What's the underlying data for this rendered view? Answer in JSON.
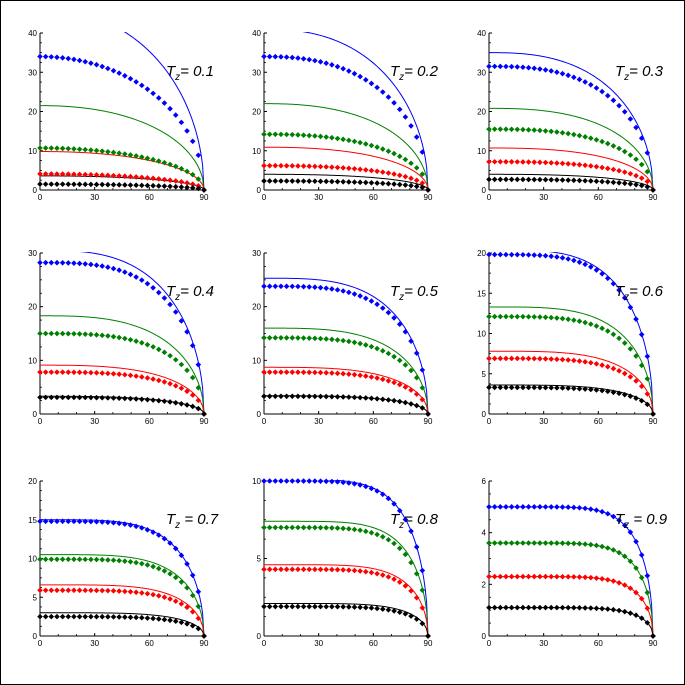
{
  "chart_data": [
    {
      "type": "line",
      "title": "Tz= 0.1",
      "title_parts": {
        "main": "T",
        "sub": "z",
        "rest": "= 0.1"
      },
      "xlim": [
        0,
        90
      ],
      "ylim": [
        0,
        40
      ],
      "xticks": [
        0,
        30,
        60,
        90
      ],
      "yticks": [
        0,
        10,
        20,
        30,
        40
      ],
      "line_max": [
        46,
        21.5,
        9.8,
        3.6
      ],
      "dot_max": [
        34,
        10.7,
        4.1,
        1.5
      ],
      "line_shape": 2.2,
      "dot_shape": 2.0
    },
    {
      "type": "line",
      "title": "Tz= 0.2",
      "title_parts": {
        "main": "T",
        "sub": "z",
        "rest": "= 0.2"
      },
      "xlim": [
        0,
        90
      ],
      "ylim": [
        0,
        40
      ],
      "xticks": [
        0,
        30,
        60,
        90
      ],
      "yticks": [
        0,
        10,
        20,
        30,
        40
      ],
      "line_max": [
        41,
        22,
        10.9,
        4
      ],
      "dot_max": [
        34,
        14.2,
        6.2,
        2.3
      ],
      "line_shape": 2.4,
      "dot_shape": 2.4
    },
    {
      "type": "line",
      "title": "Tz= 0.3",
      "title_parts": {
        "main": "T",
        "sub": "z",
        "rest": "= 0.3"
      },
      "xlim": [
        0,
        90
      ],
      "ylim": [
        0,
        40
      ],
      "xticks": [
        0,
        30,
        60,
        90
      ],
      "yticks": [
        0,
        10,
        20,
        30,
        40
      ],
      "line_max": [
        35,
        20.8,
        10.7,
        4
      ],
      "dot_max": [
        31.5,
        15.5,
        7.2,
        2.7
      ],
      "line_shape": 2.6,
      "dot_shape": 2.7
    },
    {
      "type": "line",
      "title": "Tz= 0.4",
      "title_parts": {
        "main": "T",
        "sub": "z",
        "rest": "= 0.4"
      },
      "xlim": [
        0,
        90
      ],
      "ylim": [
        0,
        30
      ],
      "xticks": [
        0,
        30,
        60,
        90
      ],
      "yticks": [
        0,
        10,
        20,
        30
      ],
      "line_max": [
        30.5,
        18.3,
        9.1,
        3.3
      ],
      "dot_max": [
        28.2,
        15,
        7.8,
        3.1
      ],
      "line_shape": 3.0,
      "dot_shape": 3.2
    },
    {
      "type": "line",
      "title": "Tz= 0.5",
      "title_parts": {
        "main": "T",
        "sub": "z",
        "rest": "= 0.5"
      },
      "xlim": [
        0,
        90
      ],
      "ylim": [
        0,
        30
      ],
      "xticks": [
        0,
        30,
        60,
        90
      ],
      "yticks": [
        0,
        10,
        20,
        30
      ],
      "line_max": [
        25.3,
        16,
        8.7,
        3.4
      ],
      "dot_max": [
        23.8,
        14.2,
        7.8,
        3.3
      ],
      "line_shape": 3.4,
      "dot_shape": 3.6
    },
    {
      "type": "line",
      "title": "Tz= 0.6",
      "title_parts": {
        "main": "T",
        "sub": "z",
        "rest": "= 0.6"
      },
      "xlim": [
        0,
        90
      ],
      "ylim": [
        0,
        20
      ],
      "xticks": [
        0,
        30,
        60,
        90
      ],
      "yticks": [
        0,
        5,
        10,
        15,
        20
      ],
      "line_max": [
        20.4,
        13.3,
        7.8,
        3.6
      ],
      "dot_max": [
        19.8,
        12.1,
        6.9,
        3.3
      ],
      "line_shape": 3.8,
      "dot_shape": 4.0
    },
    {
      "type": "line",
      "title": "Tz = 0.7",
      "title_parts": {
        "main": "T",
        "sub": "z",
        "rest": " = 0.7"
      },
      "xlim": [
        0,
        90
      ],
      "ylim": [
        0,
        20
      ],
      "xticks": [
        0,
        30,
        60,
        90
      ],
      "yticks": [
        0,
        5,
        10,
        15,
        20
      ],
      "line_max": [
        15,
        10.5,
        6.6,
        3
      ],
      "dot_max": [
        14.8,
        9.9,
        5.9,
        2.5
      ],
      "line_shape": 4.5,
      "dot_shape": 4.6
    },
    {
      "type": "line",
      "title": "Tz= 0.8",
      "title_parts": {
        "main": "T",
        "sub": "z",
        "rest": "= 0.8"
      },
      "xlim": [
        0,
        90
      ],
      "ylim": [
        0,
        10
      ],
      "xticks": [
        0,
        30,
        60,
        90
      ],
      "yticks": [
        0,
        5,
        10
      ],
      "line_max": [
        10.1,
        7.4,
        4.6,
        2.1
      ],
      "dot_max": [
        10,
        7,
        4.3,
        1.9
      ],
      "line_shape": 5.5,
      "dot_shape": 5.6
    },
    {
      "type": "line",
      "title": "Tz = 0.9",
      "title_parts": {
        "main": "T",
        "sub": "z",
        "rest": " = 0.9"
      },
      "xlim": [
        0,
        90
      ],
      "ylim": [
        0,
        6
      ],
      "xticks": [
        0,
        30,
        60,
        90
      ],
      "yticks": [
        0,
        2,
        4,
        6
      ],
      "line_max": [
        5,
        3.6,
        2.3,
        1.1
      ],
      "dot_max": [
        5,
        3.6,
        2.3,
        1.1
      ],
      "line_shape": 7.0,
      "dot_shape": 7.0
    }
  ],
  "colors": {
    "series": [
      "#0000ff",
      "#008000",
      "#ff0000",
      "#000000"
    ],
    "axis": "#000000",
    "frame": "#000000",
    "background": "#ffffff"
  },
  "dot_count": 30
}
